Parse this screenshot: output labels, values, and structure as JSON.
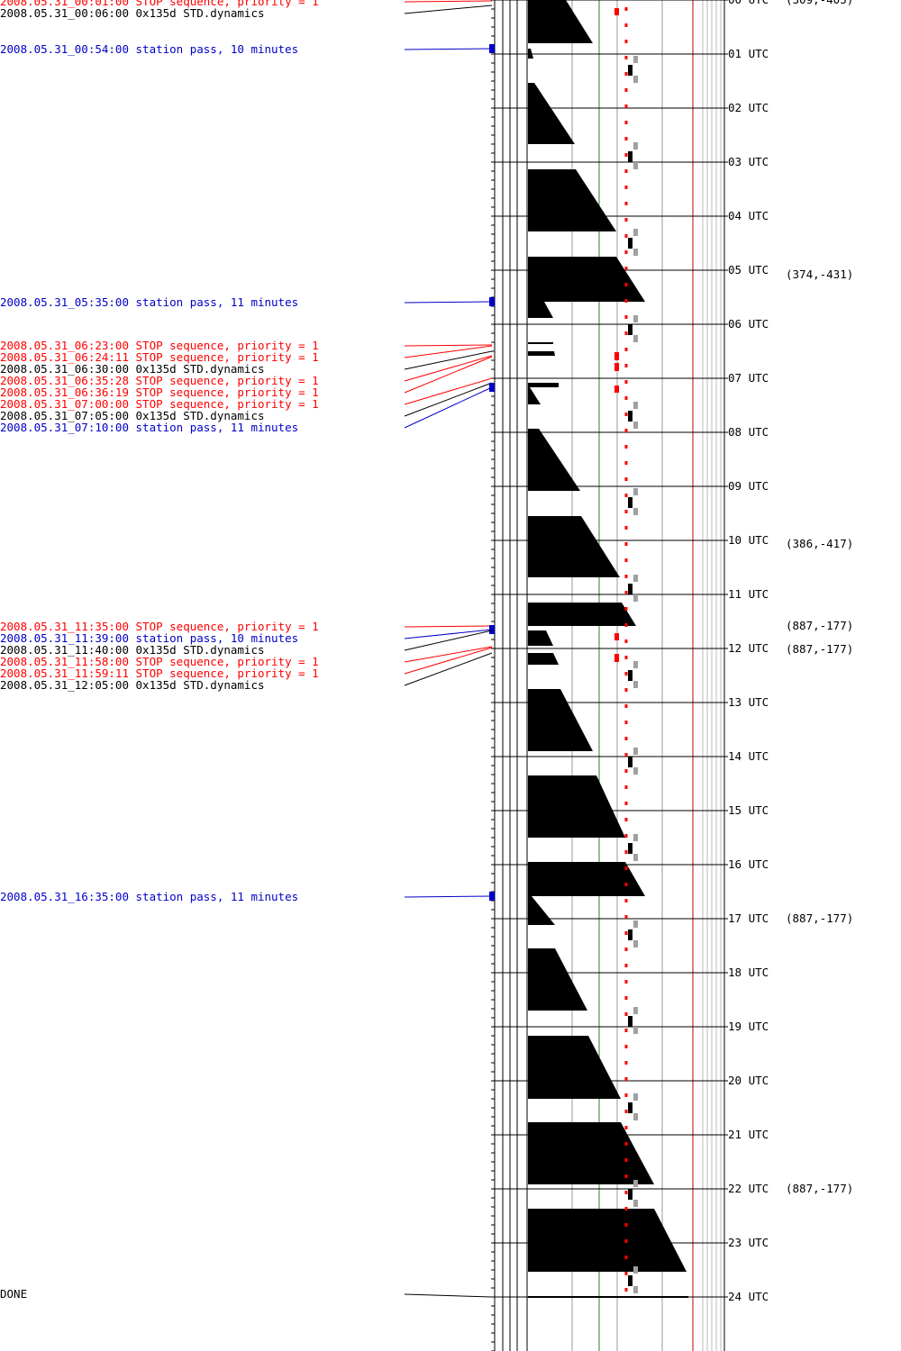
{
  "colors": {
    "stop": "#ff0000",
    "dynamics": "#000000",
    "pass": "#0000c8",
    "marker_gray": "#a0a0a0",
    "grid_green": "#2e7d32",
    "red_rule": "#c00000"
  },
  "events": [
    {
      "kind": "stop",
      "time": "00:01",
      "text": "2008.05.31_00:01:00 STOP sequence, priority = 1"
    },
    {
      "kind": "dynamics",
      "time": "00:06",
      "text": "2008.05.31_00:06:00 0x135d STD.dynamics"
    },
    {
      "kind": "pass",
      "time": "00:54",
      "text": "2008.05.31_00:54:00 station pass, 10 minutes",
      "duration_min": 10
    },
    {
      "kind": "pass",
      "time": "05:35",
      "text": "2008.05.31_05:35:00 station pass, 11 minutes",
      "duration_min": 11
    },
    {
      "kind": "stop",
      "time": "06:23",
      "text": "2008.05.31_06:23:00 STOP sequence, priority = 1"
    },
    {
      "kind": "stop",
      "time": "06:24",
      "text": "2008.05.31_06:24:11 STOP sequence, priority = 1"
    },
    {
      "kind": "dynamics",
      "time": "06:30",
      "text": "2008.05.31_06:30:00 0x135d STD.dynamics"
    },
    {
      "kind": "stop",
      "time": "06:35",
      "text": "2008.05.31_06:35:28 STOP sequence, priority = 1"
    },
    {
      "kind": "stop",
      "time": "06:36",
      "text": "2008.05.31_06:36:19 STOP sequence, priority = 1"
    },
    {
      "kind": "stop",
      "time": "07:00",
      "text": "2008.05.31_07:00:00 STOP sequence, priority = 1"
    },
    {
      "kind": "dynamics",
      "time": "07:05",
      "text": "2008.05.31_07:05:00 0x135d STD.dynamics"
    },
    {
      "kind": "pass",
      "time": "07:10",
      "text": "2008.05.31_07:10:00 station pass, 11 minutes",
      "duration_min": 11
    },
    {
      "kind": "stop",
      "time": "11:35",
      "text": "2008.05.31_11:35:00 STOP sequence, priority = 1"
    },
    {
      "kind": "pass",
      "time": "11:39",
      "text": "2008.05.31_11:39:00 station pass, 10 minutes",
      "duration_min": 10
    },
    {
      "kind": "dynamics",
      "time": "11:40",
      "text": "2008.05.31_11:40:00 0x135d STD.dynamics"
    },
    {
      "kind": "stop",
      "time": "11:58",
      "text": "2008.05.31_11:58:00 STOP sequence, priority = 1"
    },
    {
      "kind": "stop",
      "time": "11:59",
      "text": "2008.05.31_11:59:11 STOP sequence, priority = 1"
    },
    {
      "kind": "dynamics",
      "time": "12:05",
      "text": "2008.05.31_12:05:00 0x135d STD.dynamics"
    },
    {
      "kind": "pass",
      "time": "16:35",
      "text": "2008.05.31_16:35:00 station pass, 11 minutes",
      "duration_min": 11
    },
    {
      "kind": "done",
      "time": "24:00",
      "text": "DONE"
    }
  ],
  "hour_labels": [
    "00 UTC",
    "01 UTC",
    "02 UTC",
    "03 UTC",
    "04 UTC",
    "05 UTC",
    "06 UTC",
    "07 UTC",
    "08 UTC",
    "09 UTC",
    "10 UTC",
    "11 UTC",
    "12 UTC",
    "13 UTC",
    "14 UTC",
    "15 UTC",
    "16 UTC",
    "17 UTC",
    "18 UTC",
    "19 UTC",
    "20 UTC",
    "21 UTC",
    "22 UTC",
    "23 UTC",
    "24 UTC"
  ],
  "position_notes": [
    {
      "time": "00:00",
      "text": "(309,-405)"
    },
    {
      "time": "05:05",
      "text": "(374,-431)"
    },
    {
      "time": "10:04",
      "text": "(386,-417)"
    },
    {
      "time": "11:35",
      "text": "(887,-177)"
    },
    {
      "time": "12:01",
      "text": "(887,-177)"
    },
    {
      "time": "17:00",
      "text": "(887,-177)"
    },
    {
      "time": "22:00",
      "text": "(887,-177)"
    }
  ],
  "orbit_segments": [
    {
      "start": "00:00",
      "end": "00:48",
      "top_width": 42,
      "bottom_width": 72
    },
    {
      "start": "00:54",
      "end": "01:05",
      "top_width": 3,
      "bottom_width": 6
    },
    {
      "start": "01:32",
      "end": "02:40",
      "top_width": 7,
      "bottom_width": 52
    },
    {
      "start": "03:08",
      "end": "04:17",
      "top_width": 53,
      "bottom_width": 98
    },
    {
      "start": "04:45",
      "end": "05:35",
      "top_width": 98,
      "bottom_width": 130
    },
    {
      "start": "05:35",
      "end": "05:53",
      "top_width": 18,
      "bottom_width": 28
    },
    {
      "start": "06:20",
      "end": "06:22",
      "top_width": 28,
      "bottom_width": 28
    },
    {
      "start": "06:30",
      "end": "06:35",
      "top_width": 29,
      "bottom_width": 30
    },
    {
      "start": "07:05",
      "end": "07:10",
      "top_width": 34,
      "bottom_width": 34
    },
    {
      "start": "07:10",
      "end": "07:29",
      "top_width": 2,
      "bottom_width": 14
    },
    {
      "start": "07:56",
      "end": "09:05",
      "top_width": 12,
      "bottom_width": 58
    },
    {
      "start": "09:33",
      "end": "10:41",
      "top_width": 59,
      "bottom_width": 102
    },
    {
      "start": "11:09",
      "end": "11:35",
      "top_width": 104,
      "bottom_width": 120
    },
    {
      "start": "11:40",
      "end": "11:57",
      "top_width": 20,
      "bottom_width": 28
    },
    {
      "start": "12:05",
      "end": "12:18",
      "top_width": 28,
      "bottom_width": 34
    },
    {
      "start": "12:45",
      "end": "13:54",
      "top_width": 36,
      "bottom_width": 72
    },
    {
      "start": "14:21",
      "end": "15:30",
      "top_width": 76,
      "bottom_width": 108
    },
    {
      "start": "15:57",
      "end": "16:35",
      "top_width": 108,
      "bottom_width": 130
    },
    {
      "start": "16:35",
      "end": "17:07",
      "top_width": 4,
      "bottom_width": 30
    },
    {
      "start": "17:33",
      "end": "18:42",
      "top_width": 30,
      "bottom_width": 66
    },
    {
      "start": "19:10",
      "end": "20:20",
      "top_width": 67,
      "bottom_width": 103
    },
    {
      "start": "20:46",
      "end": "21:55",
      "top_width": 103,
      "bottom_width": 140
    },
    {
      "start": "22:22",
      "end": "23:32",
      "top_width": 140,
      "bottom_width": 176
    },
    {
      "start": "23:59",
      "end": "24:00",
      "top_width": 178,
      "bottom_width": 178
    }
  ]
}
